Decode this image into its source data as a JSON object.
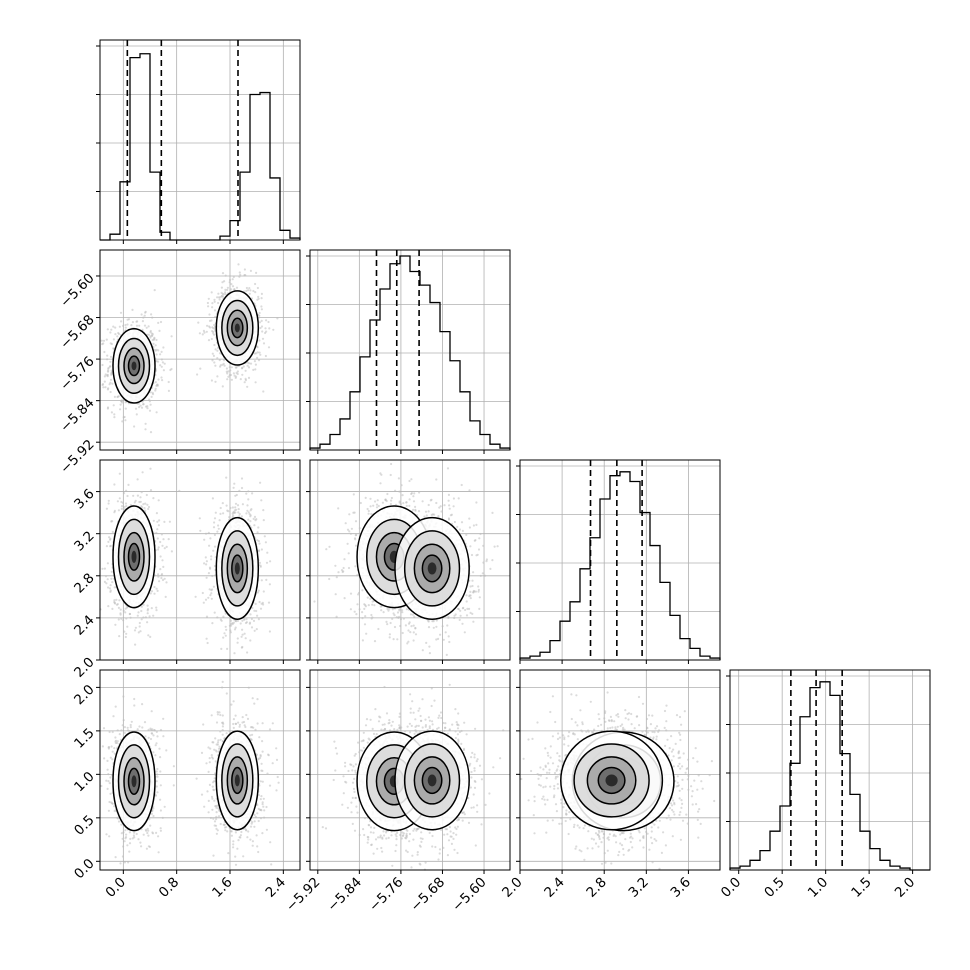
{
  "chart_data": {
    "type": "corner",
    "grid": true,
    "parameters": [
      {
        "range": [
          -0.35,
          2.65
        ],
        "ticks": [
          0.0,
          0.8,
          1.6,
          2.4
        ],
        "tick_labels": [
          "0.0",
          "0.8",
          "1.6",
          "2.4"
        ],
        "quantiles": [
          0.06,
          0.57,
          1.72
        ],
        "hist": [
          0,
          0.03,
          0.3,
          0.94,
          0.96,
          0.35,
          0.04,
          0,
          0,
          0,
          0,
          0,
          0.02,
          0.1,
          0.35,
          0.75,
          0.76,
          0.32,
          0.05,
          0.01
        ]
      },
      {
        "range": [
          -5.935,
          -5.55
        ],
        "ticks": [
          -5.92,
          -5.84,
          -5.76,
          -5.68,
          -5.6
        ],
        "tick_labels": [
          "−5.92",
          "−5.84",
          "−5.76",
          "−5.68",
          "−5.60"
        ],
        "quantiles": [
          -5.807,
          -5.768,
          -5.725
        ],
        "hist": [
          0.01,
          0.03,
          0.08,
          0.16,
          0.3,
          0.48,
          0.67,
          0.83,
          0.96,
          1.0,
          0.92,
          0.85,
          0.76,
          0.61,
          0.46,
          0.3,
          0.15,
          0.08,
          0.03,
          0.01
        ]
      },
      {
        "range": [
          2.0,
          3.9
        ],
        "ticks": [
          2.0,
          2.4,
          2.8,
          3.2,
          3.6
        ],
        "tick_labels": [
          "2.0",
          "2.4",
          "2.8",
          "3.2",
          "3.6"
        ],
        "quantiles": [
          2.67,
          2.92,
          3.16
        ],
        "hist": [
          0.01,
          0.02,
          0.04,
          0.1,
          0.2,
          0.3,
          0.47,
          0.63,
          0.83,
          0.95,
          0.97,
          0.92,
          0.76,
          0.59,
          0.4,
          0.23,
          0.11,
          0.06,
          0.02,
          0.01
        ]
      },
      {
        "range": [
          -0.1,
          2.2
        ],
        "ticks": [
          0.0,
          0.5,
          1.0,
          1.5,
          2.0
        ],
        "tick_labels": [
          "0.0",
          "0.5",
          "1.0",
          "1.5",
          "2.0"
        ],
        "quantiles": [
          0.6,
          0.89,
          1.19
        ],
        "hist": [
          0.01,
          0.02,
          0.05,
          0.1,
          0.2,
          0.33,
          0.55,
          0.79,
          0.94,
          0.97,
          0.9,
          0.6,
          0.39,
          0.2,
          0.11,
          0.05,
          0.02,
          0.01,
          0.0,
          0.0
        ]
      }
    ],
    "modes": [
      [
        0.16,
        -5.773,
        2.98,
        0.92
      ],
      [
        1.71,
        -5.7,
        2.87,
        0.93
      ]
    ],
    "mode_spread": [
      [
        0.15,
        0.034,
        0.23,
        0.27
      ],
      [
        0.15,
        0.034,
        0.23,
        0.27
      ]
    ],
    "mode_weights": [
      0.5,
      0.5
    ]
  }
}
